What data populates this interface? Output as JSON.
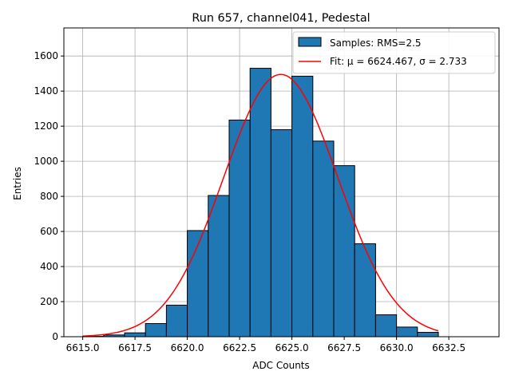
{
  "chart_data": {
    "type": "bar",
    "title": "Run 657, channel041, Pedestal",
    "xlabel": "ADC Counts",
    "ylabel": "Entries",
    "xlim": [
      6614.1,
      6634.9
    ],
    "ylim": [
      0,
      1760
    ],
    "xticks": [
      6615.0,
      6617.5,
      6620.0,
      6622.5,
      6625.0,
      6627.5,
      6630.0,
      6632.5
    ],
    "xtick_labels": [
      "6615.0",
      "6617.5",
      "6620.0",
      "6622.5",
      "6625.0",
      "6627.5",
      "6630.0",
      "6632.5"
    ],
    "yticks": [
      0,
      200,
      400,
      600,
      800,
      1000,
      1200,
      1400,
      1600
    ],
    "ytick_labels": [
      "0",
      "200",
      "400",
      "600",
      "800",
      "1000",
      "1200",
      "1400",
      "1600"
    ],
    "grid": true,
    "legend_position": "top-right",
    "colors": {
      "bar_fill": "#1f77b4",
      "bar_edge": "#000000",
      "fit_line": "#ff0000",
      "grid": "#b0b0b0"
    },
    "series": [
      {
        "name": "Samples: RMS=2.5",
        "kind": "histogram",
        "bin_edges": [
          6615,
          6616,
          6617,
          6618,
          6619,
          6620,
          6621,
          6622,
          6623,
          6624,
          6625,
          6626,
          6627,
          6628,
          6629,
          6630,
          6631,
          6632,
          6633,
          6634
        ],
        "counts": [
          2,
          10,
          22,
          75,
          180,
          605,
          805,
          1235,
          1530,
          1180,
          1485,
          1115,
          975,
          530,
          125,
          55,
          25,
          0,
          0
        ]
      },
      {
        "name": "Fit: μ = 6624.467, σ = 2.733",
        "kind": "gaussian",
        "mu": 6624.467,
        "sigma": 2.733,
        "amplitude": 1495,
        "x_range": [
          6615,
          6632
        ]
      }
    ]
  }
}
